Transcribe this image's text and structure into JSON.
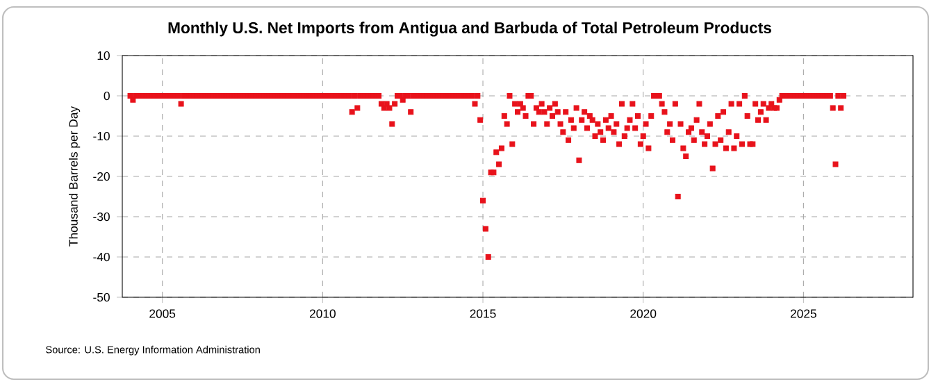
{
  "chart_data": {
    "type": "scatter",
    "title": "Monthly U.S. Net Imports from Antigua and Barbuda of Total Petroleum Products",
    "ylabel": "Thousand Barrels per Day",
    "annotations": [
      "Source: U.S. Energy Information Administration"
    ],
    "xlim": [
      "2003-10",
      "2028-06"
    ],
    "xticks": [
      "2005",
      "2010",
      "2015",
      "2020",
      "2025"
    ],
    "ylim": [
      -50,
      10
    ],
    "yticks": [
      -50,
      -40,
      -30,
      -20,
      -10,
      0,
      10
    ],
    "grid": true,
    "marker": "square",
    "series": [
      {
        "color": "#e8121b",
        "x": [
          "2004-01",
          "2004-02",
          "2004-03",
          "2004-04",
          "2004-05",
          "2004-06",
          "2004-07",
          "2004-08",
          "2004-09",
          "2004-10",
          "2004-11",
          "2004-12",
          "2005-01",
          "2005-02",
          "2005-03",
          "2005-04",
          "2005-05",
          "2005-06",
          "2005-07",
          "2005-08",
          "2005-09",
          "2005-10",
          "2005-11",
          "2005-12",
          "2006-01",
          "2006-02",
          "2006-03",
          "2006-04",
          "2006-05",
          "2006-06",
          "2006-07",
          "2006-08",
          "2006-09",
          "2006-10",
          "2006-11",
          "2006-12",
          "2007-01",
          "2007-02",
          "2007-03",
          "2007-04",
          "2007-05",
          "2007-06",
          "2007-07",
          "2007-08",
          "2007-09",
          "2007-10",
          "2007-11",
          "2007-12",
          "2008-01",
          "2008-02",
          "2008-03",
          "2008-04",
          "2008-05",
          "2008-06",
          "2008-07",
          "2008-08",
          "2008-09",
          "2008-10",
          "2008-11",
          "2008-12",
          "2009-01",
          "2009-02",
          "2009-03",
          "2009-04",
          "2009-05",
          "2009-06",
          "2009-07",
          "2009-08",
          "2009-09",
          "2009-10",
          "2009-11",
          "2009-12",
          "2010-01",
          "2010-02",
          "2010-03",
          "2010-04",
          "2010-05",
          "2010-06",
          "2010-07",
          "2010-08",
          "2010-09",
          "2010-10",
          "2010-11",
          "2010-12",
          "2011-01",
          "2011-02",
          "2011-03",
          "2011-04",
          "2011-05",
          "2011-06",
          "2011-07",
          "2011-08",
          "2011-09",
          "2011-10",
          "2011-11",
          "2011-12",
          "2012-01",
          "2012-02",
          "2012-03",
          "2012-04",
          "2012-05",
          "2012-06",
          "2012-07",
          "2012-08",
          "2012-09",
          "2012-10",
          "2012-11",
          "2012-12",
          "2013-01",
          "2013-02",
          "2013-03",
          "2013-04",
          "2013-05",
          "2013-06",
          "2013-07",
          "2013-08",
          "2013-09",
          "2013-10",
          "2013-11",
          "2013-12",
          "2014-01",
          "2014-02",
          "2014-03",
          "2014-04",
          "2014-05",
          "2014-06",
          "2014-07",
          "2014-08",
          "2014-09",
          "2014-10",
          "2014-11",
          "2014-12",
          "2015-01",
          "2015-02",
          "2015-03",
          "2015-04",
          "2015-05",
          "2015-06",
          "2015-07",
          "2015-08",
          "2015-09",
          "2015-10",
          "2015-11",
          "2015-12",
          "2016-01",
          "2016-02",
          "2016-03",
          "2016-04",
          "2016-05",
          "2016-06",
          "2016-07",
          "2016-08",
          "2016-09",
          "2016-10",
          "2016-11",
          "2016-12",
          "2017-01",
          "2017-02",
          "2017-03",
          "2017-04",
          "2017-05",
          "2017-06",
          "2017-07",
          "2017-08",
          "2017-09",
          "2017-10",
          "2017-11",
          "2017-12",
          "2018-01",
          "2018-02",
          "2018-03",
          "2018-04",
          "2018-05",
          "2018-06",
          "2018-07",
          "2018-08",
          "2018-09",
          "2018-10",
          "2018-11",
          "2018-12",
          "2019-01",
          "2019-02",
          "2019-03",
          "2019-04",
          "2019-05",
          "2019-06",
          "2019-07",
          "2019-08",
          "2019-09",
          "2019-10",
          "2019-11",
          "2019-12",
          "2020-01",
          "2020-02",
          "2020-03",
          "2020-04",
          "2020-05",
          "2020-06",
          "2020-07",
          "2020-08",
          "2020-09",
          "2020-10",
          "2020-11",
          "2020-12",
          "2021-01",
          "2021-02",
          "2021-03",
          "2021-04",
          "2021-05",
          "2021-06",
          "2021-07",
          "2021-08",
          "2021-09",
          "2021-10",
          "2021-11",
          "2021-12",
          "2022-01",
          "2022-02",
          "2022-03",
          "2022-04",
          "2022-05",
          "2022-06",
          "2022-07",
          "2022-08",
          "2022-09",
          "2022-10",
          "2022-11",
          "2022-12",
          "2023-01",
          "2023-02",
          "2023-03",
          "2023-04",
          "2023-05",
          "2023-06",
          "2023-07",
          "2023-08",
          "2023-09",
          "2023-10",
          "2023-11",
          "2023-12",
          "2024-01",
          "2024-02",
          "2024-03",
          "2024-04",
          "2024-05",
          "2024-06",
          "2024-07",
          "2024-08",
          "2024-09",
          "2024-10",
          "2024-11",
          "2024-12",
          "2025-01",
          "2025-02",
          "2025-03",
          "2025-04",
          "2025-05",
          "2025-06",
          "2025-07",
          "2025-08",
          "2025-09",
          "2025-10",
          "2025-11",
          "2025-12",
          "2026-01",
          "2026-02",
          "2026-03",
          "2026-04"
        ],
        "values": [
          0,
          -1,
          0,
          0,
          0,
          0,
          0,
          0,
          0,
          0,
          0,
          0,
          0,
          0,
          0,
          0,
          0,
          0,
          0,
          -2,
          0,
          0,
          0,
          0,
          0,
          0,
          0,
          0,
          0,
          0,
          0,
          0,
          0,
          0,
          0,
          0,
          0,
          0,
          0,
          0,
          0,
          0,
          0,
          0,
          0,
          0,
          0,
          0,
          0,
          0,
          0,
          0,
          0,
          0,
          0,
          0,
          0,
          0,
          0,
          0,
          0,
          0,
          0,
          0,
          0,
          0,
          0,
          0,
          0,
          0,
          0,
          0,
          0,
          0,
          0,
          0,
          0,
          0,
          0,
          0,
          0,
          0,
          0,
          -4,
          0,
          -3,
          0,
          0,
          0,
          0,
          0,
          0,
          0,
          0,
          -2,
          -3,
          -2,
          -3,
          -7,
          -2,
          0,
          0,
          -1,
          0,
          0,
          -4,
          0,
          0,
          0,
          0,
          0,
          0,
          0,
          0,
          0,
          0,
          0,
          0,
          0,
          0,
          0,
          0,
          0,
          0,
          0,
          0,
          0,
          0,
          0,
          -2,
          0,
          -6,
          -26,
          -33,
          -40,
          -19,
          -19,
          -14,
          -17,
          -13,
          -5,
          -7,
          0,
          -12,
          -2,
          -4,
          -2,
          -3,
          -5,
          0,
          0,
          -7,
          -3,
          -4,
          -2,
          -4,
          -7,
          -3,
          -5,
          -2,
          -4,
          -7,
          -9,
          -4,
          -11,
          -6,
          -8,
          -3,
          -16,
          -6,
          -4,
          -8,
          -5,
          -6,
          -10,
          -7,
          -9,
          -11,
          -6,
          -8,
          -5,
          -9,
          -7,
          -12,
          -2,
          -10,
          -8,
          -6,
          -2,
          -8,
          -5,
          -12,
          -10,
          -7,
          -13,
          -5,
          0,
          0,
          0,
          -2,
          -4,
          -9,
          -7,
          -11,
          -2,
          -25,
          -7,
          -13,
          -15,
          -9,
          -8,
          -11,
          -6,
          -2,
          -9,
          -12,
          -10,
          -7,
          -18,
          -12,
          -5,
          -11,
          -4,
          -13,
          -9,
          -2,
          -13,
          -10,
          -2,
          -12,
          0,
          -5,
          -12,
          -12,
          -2,
          -6,
          -4,
          -2,
          -6,
          -3,
          -2,
          -3,
          -3,
          -1,
          0,
          0,
          0,
          0,
          0,
          0,
          0,
          0,
          0,
          0,
          0,
          0,
          0,
          0,
          0,
          0,
          0,
          0,
          0,
          -3,
          -17,
          0,
          -3,
          0
        ]
      }
    ]
  }
}
